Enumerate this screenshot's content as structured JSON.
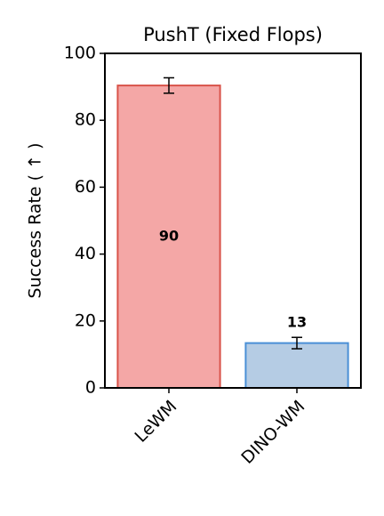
{
  "chart_data": {
    "type": "bar",
    "title": "PushT (Fixed Flops)",
    "y_label": "Success Rate ( ↑ )",
    "categories": [
      "LeWM",
      "DINO-WM"
    ],
    "values": [
      90.4,
      13.4
    ],
    "value_labels": [
      "90",
      "13"
    ],
    "errors": [
      2.3,
      1.7
    ],
    "colors": [
      "#f4a7a6",
      "#b5cce4"
    ],
    "edge_colors": [
      "#d9534a",
      "#4a8fd6"
    ],
    "ylim": [
      0,
      100
    ],
    "yticks": [
      0,
      20,
      40,
      60,
      80,
      100
    ],
    "grid": false
  }
}
